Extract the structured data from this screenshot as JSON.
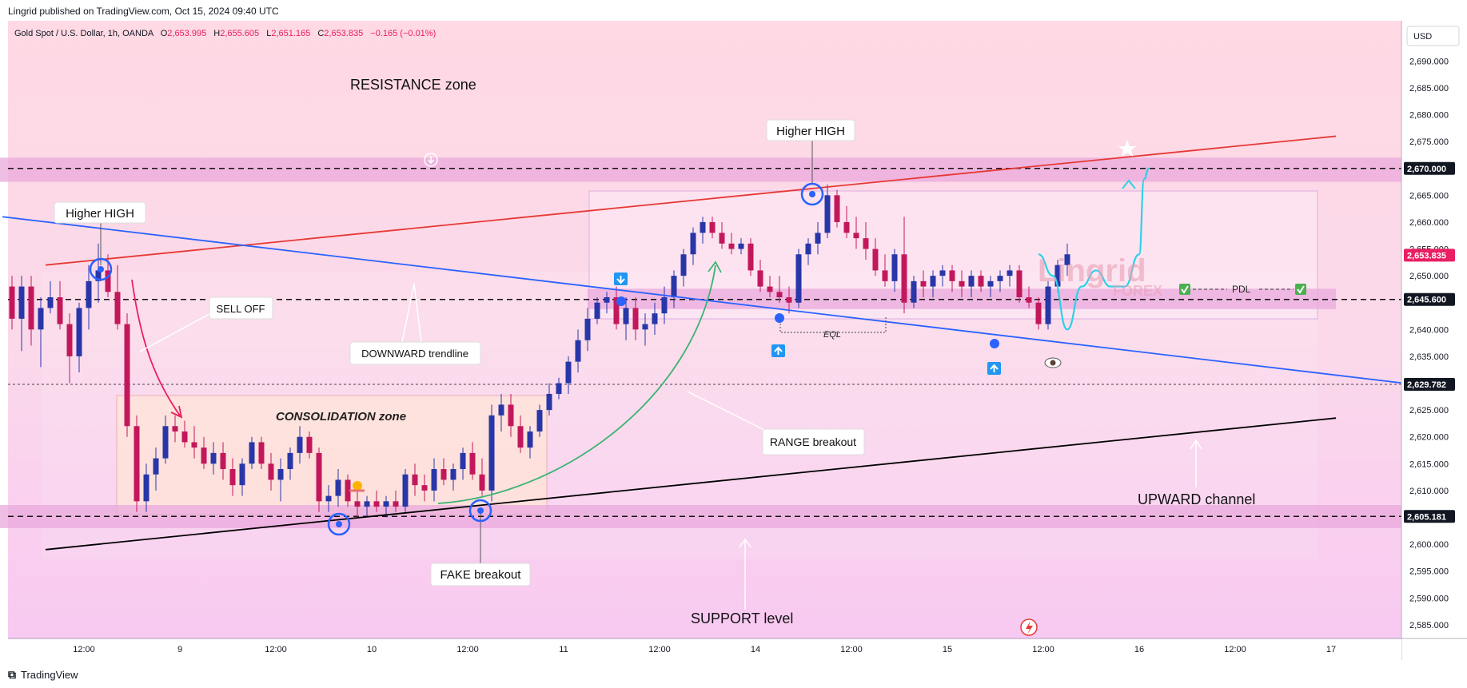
{
  "header": {
    "publisher": "Lingrid published on TradingView.com, Oct 15, 2024 09:40 UTC"
  },
  "footer": {
    "logo_glyph": "⧉",
    "brand": "TradingView"
  },
  "colors": {
    "bull": "#2836a8",
    "bear": "#c2185b",
    "resistance_line": "#e53935",
    "trendline": "#2962ff",
    "channel": "#000000",
    "projection": "#2bd1e8",
    "arrow_green": "#3cb371",
    "arrow_pink": "#e91e63",
    "zone": "#e9a8dc"
  },
  "chart_data": {
    "type": "candlestick",
    "symbol": "Gold Spot / U.S. Dollar, 1h, OANDA",
    "ohlc_label": {
      "o_prefix": "O",
      "open": "2,653.995",
      "h_prefix": "H",
      "high": "2,655.605",
      "l_prefix": "L",
      "low": "2,651.165",
      "c_prefix": "C",
      "close": "2,653.835",
      "change": "−0.165 (−0.01%)"
    },
    "currency": "USD",
    "y_range": [
      2582.3,
      2697.5
    ],
    "y_ticks": [
      "2,690.000",
      "2,685.000",
      "2,680.000",
      "2,675.000",
      "2,665.000",
      "2,660.000",
      "2,655.000",
      "2,650.000",
      "2,640.000",
      "2,635.000",
      "2,625.000",
      "2,620.000",
      "2,615.000",
      "2,610.000",
      "2,600.000",
      "2,595.000",
      "2,590.000",
      "2,585.000"
    ],
    "y_tick_values": [
      2690,
      2685,
      2680,
      2675,
      2665,
      2660,
      2655,
      2650,
      2640,
      2635,
      2625,
      2620,
      2615,
      2610,
      2600,
      2595,
      2590,
      2585
    ],
    "x_ticks": [
      "12:00",
      "9",
      "12:00",
      "10",
      "12:00",
      "11",
      "12:00",
      "14",
      "12:00",
      "15",
      "12:00",
      "16",
      "12:00",
      "17"
    ],
    "x_tick_index": [
      7.5,
      17.5,
      27.5,
      37.5,
      47.5,
      57.5,
      67.5,
      77.5,
      87.5,
      97.5,
      107.5,
      117.5,
      127.5,
      137.5
    ],
    "price_tags": [
      {
        "label": "2,670.000",
        "price": 2670.0,
        "style": "dark"
      },
      {
        "label": "2,653.835",
        "price": 2653.835,
        "style": "red"
      },
      {
        "label": "2,645.600",
        "price": 2645.6,
        "style": "dark"
      },
      {
        "label": "2,629.782",
        "price": 2629.782,
        "style": "dark"
      },
      {
        "label": "2,605.181",
        "price": 2605.181,
        "style": "dark"
      }
    ],
    "candles": [
      [
        2648,
        2650,
        2640,
        2642
      ],
      [
        2642,
        2650,
        2636,
        2648
      ],
      [
        2648,
        2650,
        2637,
        2640
      ],
      [
        2640,
        2646,
        2633,
        2644
      ],
      [
        2644,
        2649,
        2643,
        2646
      ],
      [
        2646,
        2649,
        2640,
        2641
      ],
      [
        2641,
        2643,
        2630,
        2635
      ],
      [
        2635,
        2645,
        2632,
        2644
      ],
      [
        2644,
        2652,
        2640,
        2649
      ],
      [
        2649,
        2656,
        2645,
        2651
      ],
      [
        2651,
        2654,
        2646,
        2647
      ],
      [
        2647,
        2652,
        2640,
        2641
      ],
      [
        2641,
        2643,
        2620,
        2622
      ],
      [
        2622,
        2624,
        2606,
        2608
      ],
      [
        2608,
        2615,
        2606,
        2613
      ],
      [
        2613,
        2618,
        2610,
        2616
      ],
      [
        2616,
        2624,
        2615,
        2622
      ],
      [
        2622,
        2624,
        2619,
        2621
      ],
      [
        2621,
        2623,
        2618,
        2619
      ],
      [
        2619,
        2622,
        2616,
        2618
      ],
      [
        2618,
        2620,
        2614,
        2615
      ],
      [
        2615,
        2619,
        2613,
        2617
      ],
      [
        2617,
        2619,
        2612,
        2614
      ],
      [
        2614,
        2616,
        2609,
        2611
      ],
      [
        2611,
        2616,
        2609,
        2615
      ],
      [
        2615,
        2620,
        2614,
        2619
      ],
      [
        2619,
        2620,
        2614,
        2615
      ],
      [
        2615,
        2617,
        2610,
        2612
      ],
      [
        2612,
        2616,
        2608,
        2614
      ],
      [
        2614,
        2618,
        2612,
        2617
      ],
      [
        2617,
        2622,
        2615,
        2620
      ],
      [
        2620,
        2621,
        2616,
        2617
      ],
      [
        2617,
        2618,
        2606,
        2608
      ],
      [
        2608,
        2611,
        2606,
        2609
      ],
      [
        2609,
        2614,
        2607,
        2612
      ],
      [
        2612,
        2613,
        2607,
        2608
      ],
      [
        2608,
        2610,
        2605,
        2607
      ],
      [
        2607,
        2609,
        2605,
        2608
      ],
      [
        2608,
        2610,
        2606,
        2607
      ],
      [
        2607,
        2609,
        2605,
        2608
      ],
      [
        2608,
        2610,
        2606,
        2607
      ],
      [
        2607,
        2614,
        2606,
        2613
      ],
      [
        2613,
        2615,
        2609,
        2611
      ],
      [
        2611,
        2613,
        2608,
        2610
      ],
      [
        2610,
        2616,
        2608,
        2614
      ],
      [
        2614,
        2616,
        2611,
        2612
      ],
      [
        2612,
        2615,
        2610,
        2614
      ],
      [
        2614,
        2618,
        2612,
        2617
      ],
      [
        2617,
        2619,
        2612,
        2613
      ],
      [
        2613,
        2616,
        2609,
        2610
      ],
      [
        2610,
        2626,
        2608,
        2624
      ],
      [
        2624,
        2628,
        2621,
        2626
      ],
      [
        2626,
        2628,
        2620,
        2622
      ],
      [
        2622,
        2624,
        2617,
        2618
      ],
      [
        2618,
        2622,
        2616,
        2621
      ],
      [
        2621,
        2626,
        2620,
        2625
      ],
      [
        2625,
        2630,
        2624,
        2628
      ],
      [
        2628,
        2631,
        2627,
        2630
      ],
      [
        2630,
        2635,
        2628,
        2634
      ],
      [
        2634,
        2640,
        2632,
        2638
      ],
      [
        2638,
        2644,
        2636,
        2642
      ],
      [
        2642,
        2646,
        2641,
        2645
      ],
      [
        2645,
        2647,
        2643,
        2646
      ],
      [
        2646,
        2648,
        2640,
        2641
      ],
      [
        2641,
        2646,
        2638,
        2644
      ],
      [
        2644,
        2646,
        2638,
        2640
      ],
      [
        2640,
        2643,
        2637,
        2641
      ],
      [
        2641,
        2645,
        2639,
        2643
      ],
      [
        2643,
        2648,
        2641,
        2646
      ],
      [
        2646,
        2651,
        2644,
        2650
      ],
      [
        2650,
        2655,
        2648,
        2654
      ],
      [
        2654,
        2659,
        2652,
        2658
      ],
      [
        2658,
        2661,
        2656,
        2660
      ],
      [
        2660,
        2661,
        2657,
        2658
      ],
      [
        2658,
        2660,
        2655,
        2656
      ],
      [
        2656,
        2658,
        2654,
        2655
      ],
      [
        2655,
        2657,
        2654,
        2656
      ],
      [
        2656,
        2657,
        2650,
        2651
      ],
      [
        2651,
        2653,
        2647,
        2648
      ],
      [
        2648,
        2650,
        2646,
        2647
      ],
      [
        2647,
        2650,
        2645,
        2646
      ],
      [
        2646,
        2648,
        2643,
        2645
      ],
      [
        2645,
        2655,
        2644,
        2654
      ],
      [
        2654,
        2657,
        2652,
        2656
      ],
      [
        2656,
        2660,
        2654,
        2658
      ],
      [
        2658,
        2667,
        2657,
        2665
      ],
      [
        2665,
        2666,
        2659,
        2660
      ],
      [
        2660,
        2663,
        2657,
        2658
      ],
      [
        2658,
        2661,
        2655,
        2657
      ],
      [
        2657,
        2660,
        2653,
        2655
      ],
      [
        2655,
        2657,
        2650,
        2651
      ],
      [
        2651,
        2654,
        2648,
        2649
      ],
      [
        2649,
        2655,
        2647,
        2654
      ],
      [
        2654,
        2661,
        2643,
        2645
      ],
      [
        2645,
        2650,
        2644,
        2649
      ],
      [
        2649,
        2651,
        2646,
        2648
      ],
      [
        2648,
        2651,
        2646,
        2650
      ],
      [
        2650,
        2652,
        2648,
        2651
      ],
      [
        2651,
        2652,
        2647,
        2649
      ],
      [
        2649,
        2651,
        2646,
        2648
      ],
      [
        2648,
        2651,
        2646,
        2650
      ],
      [
        2650,
        2651,
        2647,
        2648
      ],
      [
        2648,
        2650,
        2646,
        2649
      ],
      [
        2649,
        2651,
        2647,
        2650
      ],
      [
        2650,
        2652,
        2648,
        2651
      ],
      [
        2651,
        2652,
        2645,
        2646
      ],
      [
        2646,
        2648,
        2644,
        2645
      ],
      [
        2645,
        2646,
        2640,
        2641
      ],
      [
        2641,
        2649,
        2640,
        2648
      ],
      [
        2648,
        2653,
        2647,
        2652
      ],
      [
        2652,
        2656,
        2650,
        2654
      ]
    ],
    "zones": [
      {
        "label": "resistance-band",
        "from": 2667.5,
        "to": 2672.0,
        "x0": -2,
        "x1": 146
      },
      {
        "label": "support-band",
        "from": 2603.0,
        "to": 2607.3,
        "x0": -2,
        "x1": 146
      },
      {
        "label": "mid-band",
        "from": 2643.8,
        "to": 2647.6,
        "x0": 60,
        "x1": 138
      }
    ],
    "levels": [
      {
        "price": 2670.0,
        "style": "dashed"
      },
      {
        "price": 2645.6,
        "style": "dashed"
      },
      {
        "price": 2605.181,
        "style": "dashed"
      },
      {
        "price": 2629.782,
        "style": "dotted"
      }
    ],
    "lines": [
      {
        "name": "resistance-trendline",
        "from": [
          3.5,
          2652
        ],
        "to": [
          138,
          2676
        ]
      },
      {
        "name": "downward-trendline",
        "from": [
          -1,
          2661
        ],
        "to": [
          146,
          2629.8
        ]
      },
      {
        "name": "upward-channel-line",
        "from": [
          3.5,
          2599
        ],
        "to": [
          138,
          2623.5
        ]
      }
    ],
    "annotations": {
      "resistance_zone": "RESISTANCE zone",
      "higher_high_left": "Higher HIGH",
      "higher_high_right": "Higher HIGH",
      "sell_off": "SELL OFF",
      "downward_trendline": "DOWNWARD trendline",
      "consolidation_zone": "CONSOLIDATION zone",
      "fake_breakout": "FAKE breakout",
      "range_breakout": "RANGE breakout",
      "support_level": "SUPPORT level",
      "upward_channel": "UPWARD channel",
      "eql": "EQL",
      "pdl": "PDL",
      "watermark_top": "Lingrid",
      "watermark_bottom": "FOREX"
    },
    "projection": [
      [
        107,
        2654
      ],
      [
        108.5,
        2650
      ],
      [
        110,
        2640
      ],
      [
        111.5,
        2648
      ],
      [
        113,
        2651
      ],
      [
        114.5,
        2648
      ],
      [
        116,
        2648
      ],
      [
        117.5,
        2654
      ],
      [
        118,
        2668
      ],
      [
        118.5,
        2670
      ]
    ]
  }
}
